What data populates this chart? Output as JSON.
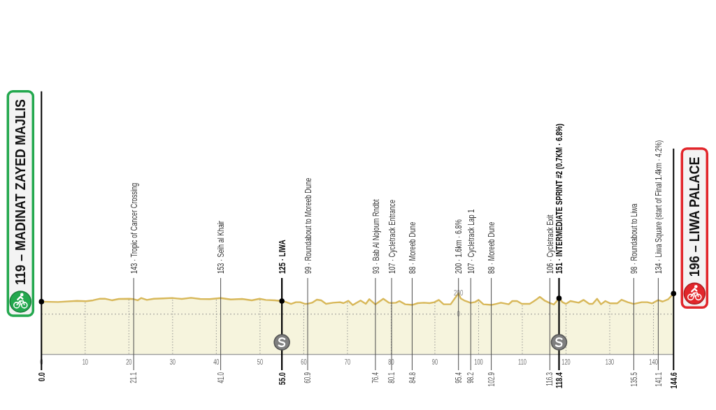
{
  "chart_data": {
    "type": "area",
    "x": [
      0,
      3.8,
      8.1,
      10.2,
      11.8,
      13.4,
      14.5,
      16.1,
      17.7,
      20.1,
      21.1,
      22.0,
      22.8,
      24.1,
      25.7,
      27.8,
      29.9,
      32.1,
      34.2,
      36.3,
      38.5,
      41.0,
      43.3,
      45.9,
      48.1,
      49.9,
      51.3,
      53.4,
      55.0,
      55.8,
      57.1,
      58.2,
      59.2,
      60.3,
      60.9,
      61.9,
      63.0,
      64.0,
      65.1,
      66.7,
      68.3,
      69.1,
      70.2,
      71.2,
      73.0,
      74.2,
      75.0,
      76.4,
      78.2,
      79.5,
      80.1,
      81.1,
      81.9,
      83.2,
      84.8,
      86.1,
      87.5,
      88.8,
      89.9,
      90.9,
      92.0,
      93.6,
      95.4,
      95.9,
      96.9,
      98.2,
      99.2,
      100.0,
      101.1,
      102.9,
      104.0,
      105.1,
      106.9,
      107.7,
      108.8,
      109.9,
      111.7,
      113.1,
      114.0,
      115.2,
      116.3,
      117.2,
      118.4,
      119.2,
      120.0,
      121.0,
      122.9,
      124.0,
      125.3,
      126.1,
      127.1,
      128.0,
      129.0,
      130.1,
      131.7,
      132.7,
      134.1,
      135.5,
      137.3,
      138.6,
      139.7,
      141.1,
      142.1,
      143.4,
      144.6
    ],
    "series": [
      {
        "color": "#d8b85a",
        "values": [
          119,
          116,
          127,
          123,
          132,
          147,
          147,
          132,
          145,
          147,
          143,
          132,
          154,
          136,
          147,
          150,
          154,
          145,
          156,
          145,
          143,
          153,
          140,
          145,
          132,
          147,
          136,
          132,
          125,
          118,
          98,
          114,
          114,
          98,
          99,
          109,
          138,
          132,
          98,
          109,
          114,
          105,
          127,
          87,
          130,
          98,
          143,
          93,
          147,
          109,
          107,
          109,
          125,
          94,
          88,
          105,
          109,
          105,
          114,
          136,
          94,
          94,
          200,
          150,
          127,
          107,
          116,
          136,
          94,
          88,
          98,
          109,
          94,
          125,
          125,
          98,
          98,
          136,
          165,
          127,
          106,
          92,
          151,
          114,
          98,
          125,
          109,
          136,
          98,
          98,
          147,
          94,
          125,
          103,
          103,
          138,
          114,
          98,
          114,
          114,
          103,
          134,
          120,
          143,
          196
        ]
      },
      {
        "type": "scatter",
        "x": [
          0,
          55.0,
          118.4,
          144.6
        ],
        "values": [
          119,
          125,
          151,
          196
        ],
        "color": "#000000",
        "marker": "circle"
      }
    ],
    "xlim": [
      0,
      144.6
    ],
    "xticks": [
      0,
      10,
      20,
      30,
      40,
      50,
      60,
      70,
      80,
      90,
      100,
      110,
      120,
      130,
      140
    ],
    "ylim": [
      -385,
      2165
    ],
    "yticks": [
      0,
      200
    ],
    "grid": "x",
    "bands": [
      {
        "axis": "y",
        "from": -385,
        "to": 0,
        "color": "#f6f4dd"
      }
    ],
    "ref_lines": [
      {
        "axis": "x",
        "value": 0,
        "label": "119 – MADINAT ZAYED MAJLIS",
        "color": "#000000"
      },
      {
        "axis": "x",
        "value": 21.1,
        "label": "143 · Tropic of Cancer Crossing",
        "color": "#4d4d4d"
      },
      {
        "axis": "x",
        "value": 41.0,
        "label": "153 · Seih al Khair",
        "color": "#4d4d4d"
      },
      {
        "axis": "x",
        "value": 55.0,
        "label": "125 · LIWA",
        "color": "#000000"
      },
      {
        "axis": "x",
        "value": 60.9,
        "label": "99 · Roundabout to Moreeb Dune",
        "color": "#4d4d4d"
      },
      {
        "axis": "x",
        "value": 76.4,
        "label": "93 · Bab Al Nojoum Rndbt",
        "color": "#4d4d4d"
      },
      {
        "axis": "x",
        "value": 80.1,
        "label": "107 · Cycletrack Entrance",
        "color": "#4d4d4d"
      },
      {
        "axis": "x",
        "value": 84.8,
        "label": "88 · Moreeb Dune",
        "color": "#4d4d4d"
      },
      {
        "axis": "x",
        "value": 95.4,
        "label": "200 · 1.6km · 6.8%",
        "color": "#4d4d4d"
      },
      {
        "axis": "x",
        "value": 98.2,
        "label": "107 · Cycletrack Lap 1",
        "color": "#4d4d4d"
      },
      {
        "axis": "x",
        "value": 102.9,
        "label": "88 · Moreeb Dune",
        "color": "#4d4d4d"
      },
      {
        "axis": "x",
        "value": 116.3,
        "label": "106 · Cycletrack Exit",
        "color": "#4d4d4d"
      },
      {
        "axis": "x",
        "value": 118.4,
        "label": "151 · INTERMEDIATE SPRINT #2 (0.7KM · 6.8%)",
        "color": "#000000"
      },
      {
        "axis": "x",
        "value": 135.5,
        "label": "98 · Roundabout to Liwa",
        "color": "#4d4d4d"
      },
      {
        "axis": "x",
        "value": 141.1,
        "label": "134 · Liwa Square (start of Final 1.4km · 4.2%)",
        "color": "#4d4d4d"
      },
      {
        "axis": "x",
        "value": 144.6,
        "label": "196 – LIWA PALACE",
        "color": "#000000"
      },
      {
        "axis": "y",
        "value": 0,
        "color": "#777777",
        "line_style": "dotted"
      }
    ],
    "annotations": [
      "0.0",
      "21.1",
      "41.0",
      "55.0",
      "60.9",
      "76.4",
      "80.1",
      "84.8",
      "95.4",
      "98.2",
      "102.9",
      "116.3",
      "118.4",
      "135.5",
      "141.1",
      "144.6"
    ]
  }
}
